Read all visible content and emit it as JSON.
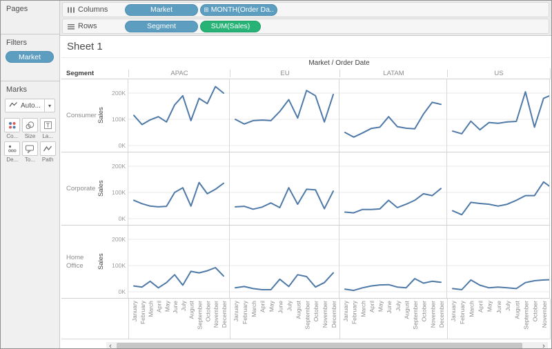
{
  "sidebar": {
    "pages": {
      "label": "Pages"
    },
    "filters": {
      "label": "Filters",
      "pills": [
        {
          "label": "Market"
        }
      ]
    },
    "marks": {
      "label": "Marks",
      "mark_type": "Auto...",
      "caret": "▾",
      "buttons": [
        {
          "label": "Co...",
          "name": "color"
        },
        {
          "label": "Size",
          "name": "size"
        },
        {
          "label": "La...",
          "name": "label"
        },
        {
          "label": "De...",
          "name": "detail"
        },
        {
          "label": "To...",
          "name": "tooltip"
        },
        {
          "label": "Path",
          "name": "path"
        }
      ]
    }
  },
  "shelves": {
    "columns": {
      "label": "Columns",
      "pills": [
        {
          "label": "Market",
          "kind": "dimension"
        },
        {
          "label": "MONTH(Order Da..",
          "prefix": "⊞",
          "kind": "dimension"
        }
      ]
    },
    "rows": {
      "label": "Rows",
      "pills": [
        {
          "label": "Segment",
          "kind": "dimension"
        },
        {
          "label": "SUM(Sales)",
          "kind": "measure"
        }
      ]
    }
  },
  "sheet": {
    "title": "Sheet 1"
  },
  "scrollbar": {
    "left": "‹",
    "right": "›"
  },
  "colors": {
    "line": "#4e79a7",
    "dimension_pill": "#5c9dc0",
    "measure_pill": "#27b376"
  },
  "chart_data": {
    "type": "line",
    "title": "Sheet 1",
    "col_field_label": "Market / Order Date",
    "row_field_label": "Segment",
    "ylabel": "Sales",
    "ylim": [
      0,
      235
    ],
    "y_unit": "K",
    "y_ticks": [
      {
        "label": "200K",
        "value": 200
      },
      {
        "label": "100K",
        "value": 100
      },
      {
        "label": "0K",
        "value": 0
      }
    ],
    "x": [
      "January",
      "February",
      "March",
      "April",
      "May",
      "June",
      "July",
      "August",
      "September",
      "October",
      "November",
      "December"
    ],
    "columns": [
      "APAC",
      "EU",
      "LATAM",
      "US"
    ],
    "rows": [
      "Consumer",
      "Corporate",
      "Home Office"
    ],
    "line_color": "#4e79a7",
    "note_last_column": "US panel is clipped by horizontal scroll; December hidden",
    "series": [
      {
        "row": "Consumer",
        "col": "APAC",
        "values": [
          115,
          80,
          98,
          110,
          90,
          155,
          190,
          95,
          180,
          160,
          225,
          200
        ]
      },
      {
        "row": "Consumer",
        "col": "EU",
        "values": [
          100,
          82,
          95,
          97,
          95,
          130,
          175,
          105,
          210,
          190,
          90,
          195
        ]
      },
      {
        "row": "Consumer",
        "col": "LATAM",
        "values": [
          50,
          32,
          48,
          65,
          70,
          110,
          72,
          66,
          64,
          120,
          165,
          157
        ]
      },
      {
        "row": "Consumer",
        "col": "US",
        "values": [
          55,
          45,
          93,
          60,
          88,
          85,
          90,
          92,
          205,
          70,
          180,
          195
        ]
      },
      {
        "row": "Corporate",
        "col": "APAC",
        "values": [
          70,
          57,
          48,
          45,
          47,
          100,
          118,
          48,
          138,
          95,
          112,
          135
        ]
      },
      {
        "row": "Corporate",
        "col": "EU",
        "values": [
          45,
          47,
          36,
          44,
          60,
          42,
          118,
          55,
          112,
          110,
          38,
          105
        ]
      },
      {
        "row": "Corporate",
        "col": "LATAM",
        "values": [
          25,
          22,
          35,
          35,
          37,
          70,
          42,
          55,
          70,
          95,
          88,
          115
        ]
      },
      {
        "row": "Corporate",
        "col": "US",
        "values": [
          30,
          15,
          62,
          58,
          55,
          48,
          55,
          70,
          88,
          88,
          140,
          115
        ]
      },
      {
        "row": "Home Office",
        "col": "APAC",
        "values": [
          22,
          18,
          40,
          15,
          35,
          65,
          25,
          78,
          72,
          80,
          92,
          60
        ]
      },
      {
        "row": "Home Office",
        "col": "EU",
        "values": [
          15,
          20,
          12,
          8,
          8,
          48,
          20,
          65,
          58,
          18,
          35,
          72
        ]
      },
      {
        "row": "Home Office",
        "col": "LATAM",
        "values": [
          10,
          5,
          15,
          22,
          26,
          27,
          18,
          15,
          50,
          33,
          40,
          36
        ]
      },
      {
        "row": "Home Office",
        "col": "US",
        "values": [
          12,
          8,
          45,
          25,
          15,
          18,
          15,
          12,
          35,
          42,
          45,
          46
        ]
      }
    ]
  }
}
